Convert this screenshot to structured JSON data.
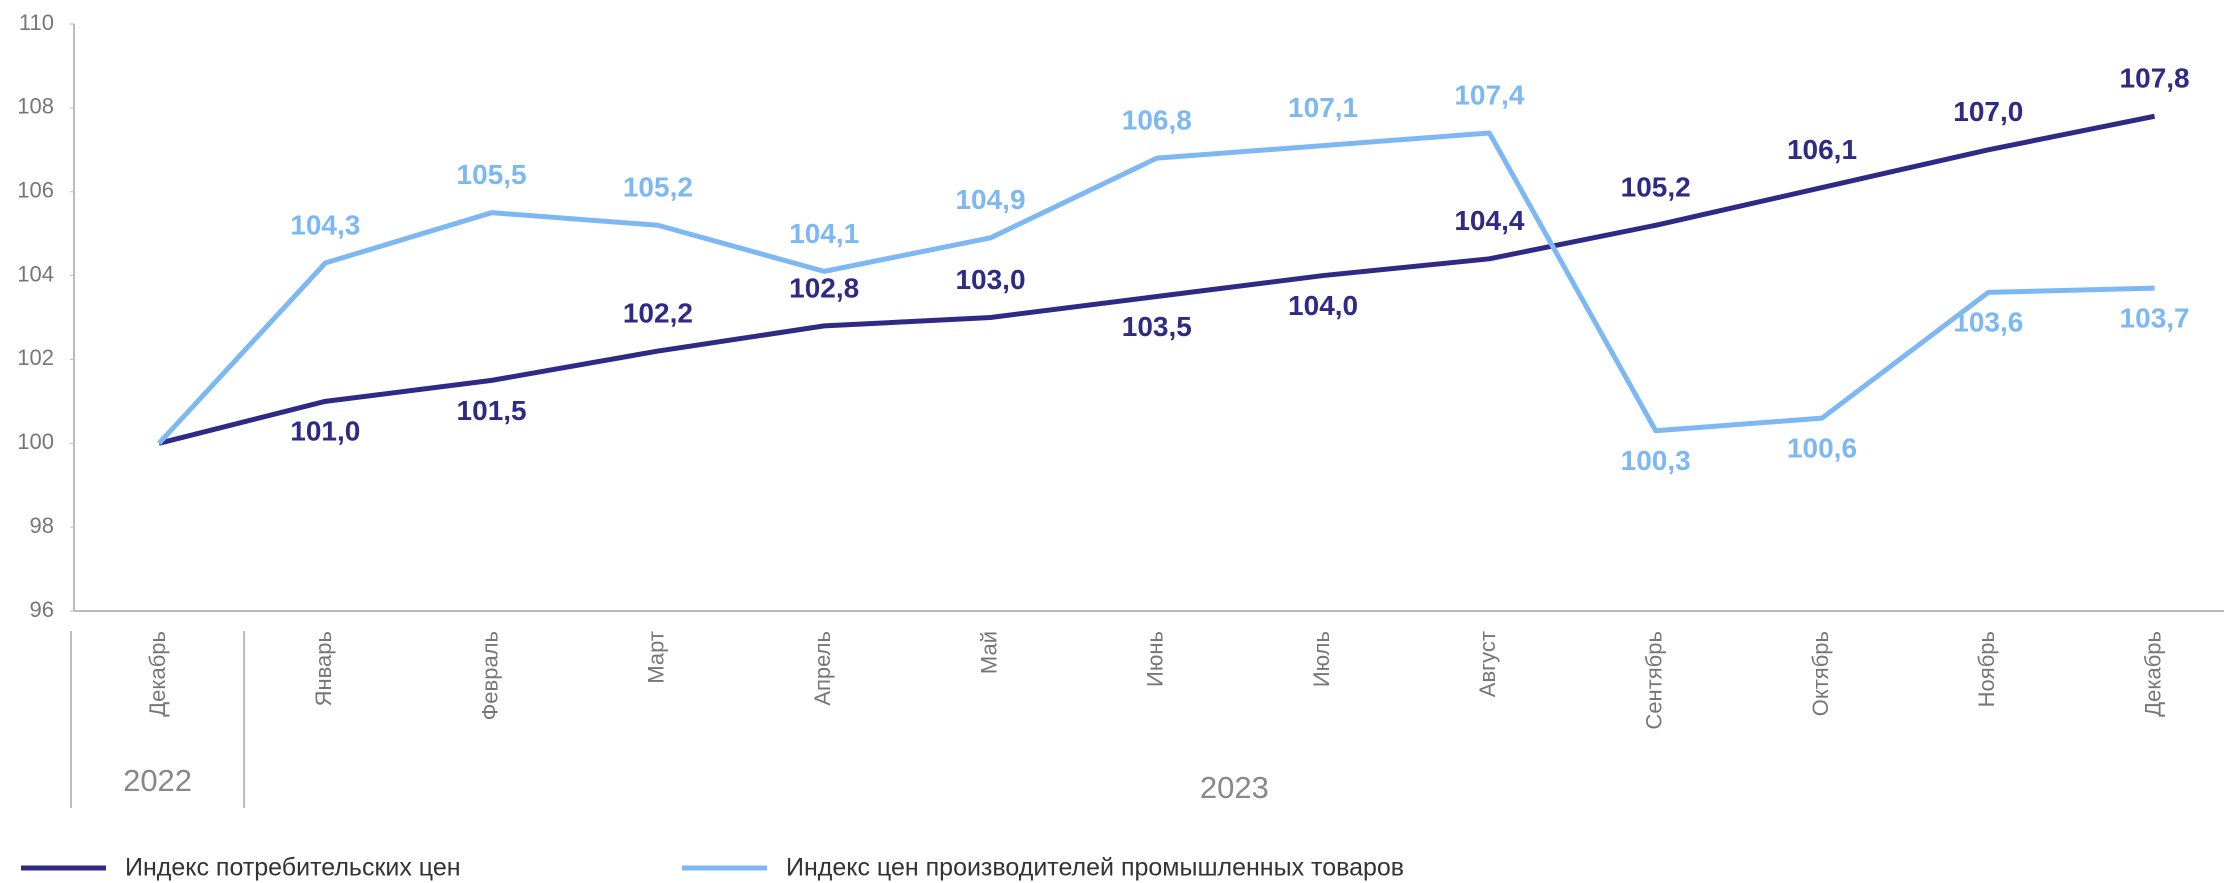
{
  "chart_data": {
    "type": "line",
    "categories": [
      "Декабрь",
      "Январь",
      "Февраль",
      "Март",
      "Апрель",
      "Май",
      "Июнь",
      "Июль",
      "Август",
      "Сентябрь",
      "Октябрь",
      "Ноябрь",
      "Декабрь"
    ],
    "category_groups": [
      {
        "label": "2022",
        "count": 1
      },
      {
        "label": "2023",
        "count": 12
      }
    ],
    "series": [
      {
        "name": "Индекс потребительских цен",
        "color": "#2f2a86",
        "values": [
          100,
          101.0,
          101.5,
          102.2,
          102.8,
          103.0,
          103.5,
          104.0,
          104.4,
          105.2,
          106.1,
          107.0,
          107.8
        ],
        "value_labels": [
          null,
          "101,0",
          "101,5",
          "102,2",
          "102,8",
          "103,0",
          "103,5",
          "104,0",
          "104,4",
          "105,2",
          "106,1",
          "107,0",
          "107,8"
        ]
      },
      {
        "name": "Индекс цен производителей промышленных товаров",
        "color": "#7db8f3",
        "values": [
          100,
          104.3,
          105.5,
          105.2,
          104.1,
          104.9,
          106.8,
          107.1,
          107.4,
          100.3,
          100.6,
          103.6,
          103.7
        ],
        "value_labels": [
          null,
          "104,3",
          "105,5",
          "105,2",
          "104,1",
          "104,9",
          "106,8",
          "107,1",
          "107,4",
          "100,3",
          "100,6",
          "103,6",
          "103,7"
        ]
      }
    ],
    "ylim": [
      96,
      110
    ],
    "yticks": [
      96,
      98,
      100,
      102,
      104,
      106,
      108,
      110
    ],
    "grid": false,
    "legend": "bottom"
  }
}
